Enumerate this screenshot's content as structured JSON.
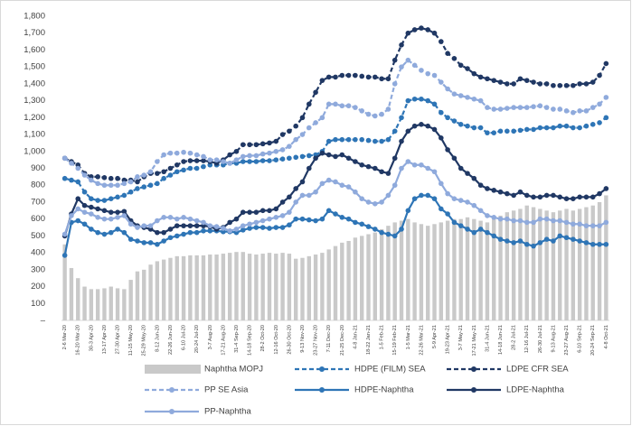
{
  "chart_data": {
    "type": "combo",
    "categories": [
      "2-6 Mar-20",
      null,
      "16-20 Mar-20",
      null,
      "30-3 Apr-20",
      null,
      "13-17 Apr-20",
      null,
      "27-30 Apr-20",
      null,
      "11-15 May-20",
      null,
      "25-29 May-20",
      null,
      "8-12 Jun-20",
      null,
      "22-26 Jun-20",
      null,
      "6-10 Jul-20",
      null,
      "20-24 Jul-20",
      null,
      "3-7 Aug-20",
      null,
      "17-21 Aug-20",
      null,
      "31-4 Sep-20",
      null,
      "14-18 Sep-20",
      null,
      "28-2 Oct-20",
      null,
      "12-16 Oct-20",
      null,
      "26-30 Oct-20",
      null,
      "9-13 Nov-20",
      null,
      "23-27 Nov-20",
      null,
      "7-11 Dec-20",
      null,
      "21-25 Dec-20",
      null,
      "4-8 Jan-21",
      null,
      "18-22 Jan-21",
      null,
      "1-5 Feb-21",
      null,
      "15-19 Feb-21",
      null,
      "1-5 Mar-21",
      null,
      "22-26 Mar-21",
      null,
      "5-9 Apr-21",
      null,
      "19-23 Apr-21",
      null,
      "3-7 May-21",
      null,
      "17-21 May-21",
      null,
      "31-4 Jun-21",
      null,
      "14-18 Jun-21",
      null,
      "28-2 Jul-21",
      null,
      "12-16 Jul-21",
      null,
      "26-30 Jul-21",
      null,
      "9-13 Aug-21",
      null,
      "23-27 Aug-21",
      null,
      "6-10 Sep-21",
      null,
      "20-24 Sep-21",
      null,
      "4-8 Oct-21"
    ],
    "series": [
      {
        "name": "Naphtha MOPJ",
        "type": "bar",
        "color": "#c9c9c9",
        "values": [
          450,
          310,
          250,
          200,
          185,
          185,
          190,
          200,
          190,
          185,
          240,
          290,
          300,
          330,
          350,
          360,
          370,
          380,
          380,
          385,
          385,
          385,
          390,
          390,
          395,
          400,
          405,
          405,
          395,
          390,
          395,
          400,
          395,
          400,
          395,
          365,
          370,
          380,
          390,
          400,
          420,
          440,
          460,
          470,
          490,
          500,
          510,
          520,
          540,
          560,
          580,
          590,
          600,
          580,
          570,
          560,
          570,
          580,
          590,
          600,
          600,
          610,
          600,
          590,
          580,
          600,
          620,
          640,
          650,
          660,
          680,
          670,
          660,
          650,
          640,
          650,
          660,
          650,
          660,
          670,
          680,
          700,
          740
        ]
      },
      {
        "name": "HDPE (FILM) SEA",
        "type": "line",
        "dashed": true,
        "color": "#2e75b6",
        "values": [
          840,
          830,
          820,
          760,
          720,
          710,
          710,
          720,
          730,
          740,
          760,
          780,
          790,
          800,
          810,
          840,
          860,
          880,
          890,
          900,
          900,
          910,
          920,
          920,
          920,
          930,
          930,
          940,
          940,
          940,
          945,
          945,
          950,
          955,
          960,
          965,
          970,
          975,
          980,
          1000,
          1060,
          1070,
          1070,
          1070,
          1070,
          1070,
          1065,
          1060,
          1060,
          1070,
          1120,
          1200,
          1300,
          1310,
          1310,
          1300,
          1280,
          1230,
          1200,
          1180,
          1160,
          1150,
          1140,
          1140,
          1110,
          1110,
          1120,
          1120,
          1120,
          1125,
          1130,
          1130,
          1140,
          1140,
          1140,
          1150,
          1150,
          1140,
          1140,
          1150,
          1160,
          1170,
          1200
        ]
      },
      {
        "name": "LDPE CFR SEA",
        "type": "line",
        "dashed": true,
        "color": "#203864",
        "values": [
          960,
          940,
          920,
          870,
          850,
          850,
          845,
          840,
          840,
          830,
          830,
          820,
          850,
          870,
          870,
          880,
          900,
          920,
          940,
          945,
          945,
          945,
          940,
          930,
          950,
          980,
          1000,
          1040,
          1040,
          1040,
          1045,
          1050,
          1060,
          1100,
          1120,
          1150,
          1200,
          1280,
          1350,
          1420,
          1440,
          1440,
          1450,
          1450,
          1450,
          1445,
          1440,
          1440,
          1430,
          1430,
          1540,
          1630,
          1700,
          1720,
          1730,
          1720,
          1700,
          1650,
          1580,
          1550,
          1510,
          1490,
          1460,
          1440,
          1430,
          1420,
          1410,
          1400,
          1400,
          1430,
          1420,
          1410,
          1400,
          1400,
          1390,
          1390,
          1390,
          1390,
          1400,
          1400,
          1410,
          1450,
          1520
        ]
      },
      {
        "name": "PP SE Asia",
        "type": "line",
        "dashed": true,
        "color": "#8faadc",
        "values": [
          960,
          930,
          900,
          860,
          830,
          810,
          800,
          800,
          800,
          810,
          820,
          850,
          860,
          880,
          940,
          980,
          990,
          990,
          995,
          990,
          980,
          970,
          950,
          950,
          940,
          930,
          950,
          970,
          975,
          975,
          985,
          990,
          1000,
          1010,
          1030,
          1070,
          1100,
          1140,
          1170,
          1200,
          1280,
          1280,
          1270,
          1270,
          1260,
          1240,
          1220,
          1210,
          1220,
          1250,
          1400,
          1500,
          1540,
          1510,
          1480,
          1460,
          1450,
          1410,
          1370,
          1340,
          1330,
          1320,
          1310,
          1300,
          1260,
          1250,
          1250,
          1255,
          1260,
          1260,
          1260,
          1265,
          1270,
          1260,
          1250,
          1250,
          1240,
          1230,
          1240,
          1240,
          1260,
          1280,
          1320
        ]
      },
      {
        "name": "HDPE-Naphtha",
        "type": "line",
        "dashed": false,
        "color": "#2e75b6",
        "values": [
          385,
          580,
          590,
          570,
          540,
          520,
          510,
          520,
          540,
          520,
          480,
          470,
          460,
          460,
          450,
          470,
          490,
          500,
          510,
          520,
          520,
          530,
          530,
          530,
          525,
          525,
          520,
          535,
          545,
          550,
          550,
          545,
          550,
          550,
          565,
          600,
          600,
          595,
          590,
          600,
          650,
          630,
          610,
          600,
          580,
          570,
          555,
          540,
          520,
          510,
          500,
          540,
          650,
          720,
          740,
          740,
          720,
          660,
          630,
          580,
          560,
          540,
          520,
          540,
          520,
          500,
          480,
          470,
          460,
          470,
          450,
          440,
          460,
          480,
          470,
          500,
          490,
          480,
          470,
          460,
          450,
          450,
          450
        ]
      },
      {
        "name": "LDPE-Naphtha",
        "type": "line",
        "dashed": false,
        "color": "#203864",
        "values": [
          500,
          630,
          720,
          680,
          670,
          660,
          650,
          640,
          640,
          645,
          590,
          560,
          550,
          540,
          520,
          520,
          540,
          560,
          560,
          560,
          560,
          560,
          555,
          540,
          550,
          580,
          600,
          640,
          640,
          640,
          650,
          650,
          660,
          700,
          730,
          780,
          820,
          900,
          960,
          990,
          980,
          970,
          980,
          960,
          940,
          920,
          910,
          900,
          880,
          870,
          960,
          1060,
          1120,
          1150,
          1160,
          1150,
          1130,
          1080,
          1010,
          960,
          900,
          870,
          840,
          800,
          780,
          770,
          760,
          750,
          740,
          760,
          740,
          730,
          730,
          740,
          740,
          730,
          720,
          720,
          730,
          730,
          730,
          750,
          780
        ]
      },
      {
        "name": "PP-Naphtha",
        "type": "line",
        "dashed": false,
        "color": "#8faadc",
        "values": [
          510,
          620,
          660,
          640,
          630,
          610,
          600,
          600,
          610,
          620,
          570,
          550,
          560,
          560,
          590,
          610,
          610,
          600,
          610,
          600,
          590,
          580,
          560,
          555,
          545,
          530,
          540,
          560,
          570,
          580,
          590,
          600,
          610,
          620,
          640,
          700,
          740,
          740,
          760,
          810,
          830,
          820,
          800,
          790,
          760,
          720,
          700,
          690,
          700,
          740,
          800,
          900,
          940,
          920,
          920,
          900,
          880,
          810,
          750,
          720,
          710,
          700,
          680,
          650,
          620,
          610,
          600,
          600,
          590,
          590,
          580,
          580,
          600,
          600,
          590,
          590,
          580,
          570,
          570,
          560,
          560,
          560,
          580
        ]
      }
    ],
    "ylim": [
      0,
      1800
    ],
    "yticks": [
      {
        "value": 0,
        "label": "–"
      },
      100,
      200,
      300,
      400,
      500,
      600,
      700,
      800,
      900,
      {
        "value": 1000,
        "label": "1,000"
      },
      {
        "value": 1100,
        "label": "1,100"
      },
      {
        "value": 1200,
        "label": "1,200"
      },
      {
        "value": 1300,
        "label": "1,300"
      },
      {
        "value": 1400,
        "label": "1,400"
      },
      {
        "value": 1500,
        "label": "1,500"
      },
      {
        "value": 1600,
        "label": "1,600"
      },
      {
        "value": 1700,
        "label": "1,700"
      },
      {
        "value": 1800,
        "label": "1,800"
      }
    ],
    "grid": false
  }
}
